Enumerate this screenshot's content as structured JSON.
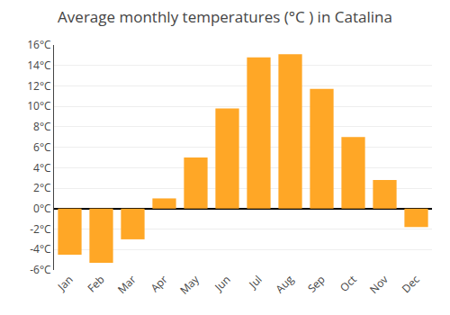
{
  "chart_data": {
    "type": "bar",
    "title": "Average monthly temperatures (°C ) in Catalina",
    "categories": [
      "Jan",
      "Feb",
      "Mar",
      "Apr",
      "May",
      "Jun",
      "Jul",
      "Aug",
      "Sep",
      "Oct",
      "Nov",
      "Dec"
    ],
    "values": [
      -4.5,
      -5.3,
      -3.0,
      1.0,
      5.0,
      9.8,
      14.8,
      15.1,
      11.7,
      7.0,
      2.8,
      -1.8
    ],
    "color": "#FFA726",
    "ylim": [
      -6,
      16
    ],
    "yticks": [
      {
        "value": -6,
        "label": "-6°C"
      },
      {
        "value": -4,
        "label": "-4°C"
      },
      {
        "value": -2,
        "label": "-2°C"
      },
      {
        "value": 0,
        "label": "0°C"
      },
      {
        "value": 2,
        "label": "2°C"
      },
      {
        "value": 4,
        "label": "4°C"
      },
      {
        "value": 6,
        "label": "6°C"
      },
      {
        "value": 8,
        "label": "8°C"
      },
      {
        "value": 10,
        "label": "10°C"
      },
      {
        "value": 12,
        "label": "12°C"
      },
      {
        "value": 14,
        "label": "14°C"
      },
      {
        "value": 16,
        "label": "16°C"
      }
    ],
    "grid": true
  }
}
